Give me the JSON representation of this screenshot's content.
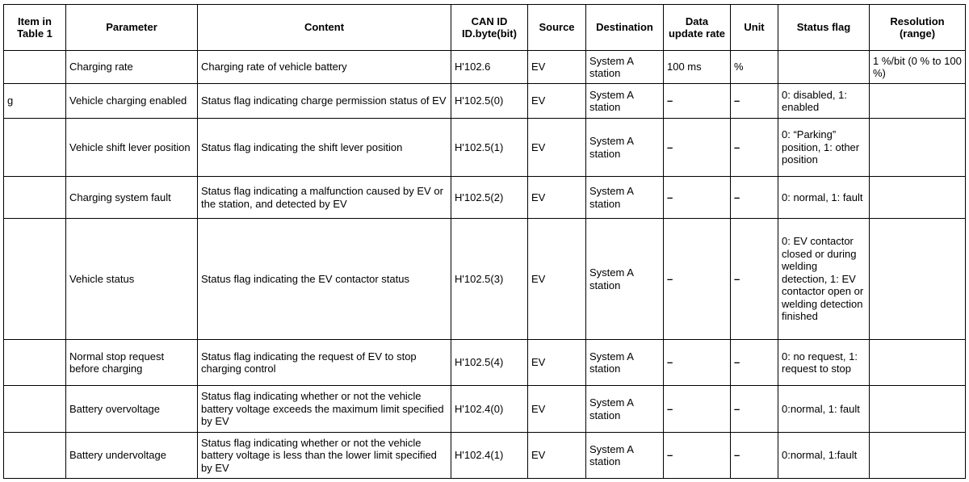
{
  "headers": [
    "Item in Table 1",
    "Parameter",
    "Content",
    "CAN ID ID.byte(bit)",
    "Source",
    "Destination",
    "Data update rate",
    "Unit",
    "Status flag",
    "Resolution (range)"
  ],
  "rows": [
    {
      "item": "",
      "parameter": "Charging rate",
      "content": "Charging rate of vehicle battery",
      "can_id": "H'102.6",
      "source": "EV",
      "destination": "System A station",
      "rate": "100 ms",
      "unit": "%",
      "status_flag": "",
      "resolution": "1 %/bit (0 % to 100 %)"
    },
    {
      "item": "g",
      "parameter": "Vehicle charging enabled",
      "content": "Status flag indicating charge permission status of EV",
      "can_id": "H'102.5(0)",
      "source": "EV",
      "destination": "System A station",
      "rate": "–",
      "unit": "–",
      "status_flag": "0: disabled, 1: enabled",
      "resolution": ""
    },
    {
      "item": "",
      "parameter": "Vehicle shift lever position",
      "content": "Status flag indicating the shift lever position",
      "can_id": "H'102.5(1)",
      "source": "EV",
      "destination": "System A station",
      "rate": "–",
      "unit": "–",
      "status_flag": "0: “Parking” position, 1: other position",
      "resolution": ""
    },
    {
      "item": "",
      "parameter": "Charging system fault",
      "content": "Status flag indicating a malfunction caused by EV or the station, and detected by EV",
      "can_id": "H'102.5(2)",
      "source": "EV",
      "destination": "System A station",
      "rate": "–",
      "unit": "–",
      "status_flag": "0: normal, 1: fault",
      "resolution": ""
    },
    {
      "item": "",
      "parameter": "Vehicle status",
      "content": "Status flag indicating the EV contactor status",
      "can_id": "H'102.5(3)",
      "source": "EV",
      "destination": "System A station",
      "rate": "–",
      "unit": "–",
      "status_flag": "0: EV contactor closed or during welding detection, 1: EV contactor open or welding detection finished",
      "resolution": ""
    },
    {
      "item": "",
      "parameter": "Normal stop request before charging",
      "content": "Status flag indicating the request of EV to stop charging control",
      "can_id": "H'102.5(4)",
      "source": "EV",
      "destination": "System A station",
      "rate": "–",
      "unit": "–",
      "status_flag": "0: no request, 1: request to stop",
      "resolution": ""
    },
    {
      "item": "",
      "parameter": "Battery overvoltage",
      "content": "Status flag indicating whether or not the vehicle battery voltage exceeds the maximum limit specified by EV",
      "can_id": "H'102.4(0)",
      "source": "EV",
      "destination": "System A station",
      "rate": "–",
      "unit": "–",
      "status_flag": "0:normal, 1: fault",
      "resolution": ""
    },
    {
      "item": "",
      "parameter": "Battery undervoltage",
      "content": "Status flag indicating whether or not the vehicle battery voltage is less than the lower limit specified by EV",
      "can_id": "H'102.4(1)",
      "source": "EV",
      "destination": "System A station",
      "rate": "–",
      "unit": "–",
      "status_flag": "0:normal, 1:fault",
      "resolution": ""
    }
  ]
}
